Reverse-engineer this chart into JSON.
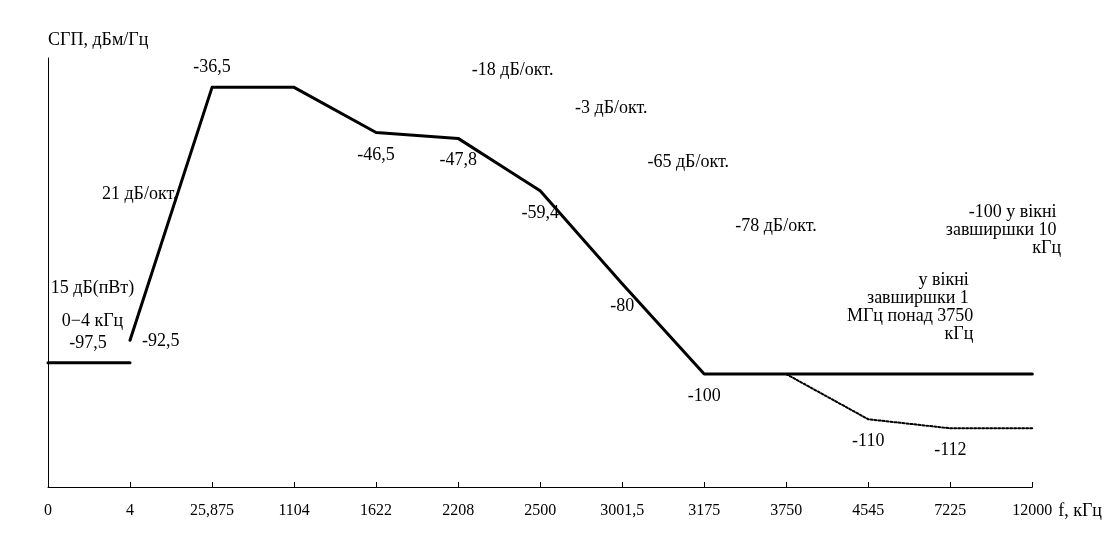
{
  "chart_data": {
    "type": "line",
    "xlabel": "f, кГц",
    "ylabel": "СГП, дБм/Гц",
    "categories": [
      "0",
      "4",
      "25,875",
      "1104",
      "1622",
      "2208",
      "2500",
      "3001,5",
      "3175",
      "3750",
      "4545",
      "7225",
      "12000"
    ],
    "ylim": [
      -125,
      -30
    ],
    "tick_labels": "x",
    "marker": "none",
    "series": [
      {
        "color": "#000000",
        "line_style": "solid",
        "values": [
          -97.5,
          -97.5,
          null,
          null,
          null,
          null,
          null,
          null,
          null,
          null,
          null,
          null,
          null
        ],
        "value_labels": [
          "-97,5",
          null,
          null,
          null,
          null,
          null,
          null,
          null,
          null,
          null,
          null,
          null,
          null
        ]
      },
      {
        "color": "#000000",
        "line_style": "solid",
        "values": [
          null,
          -92.5,
          -36.5,
          -36.5,
          -46.5,
          -47.8,
          -59.4,
          -80,
          -100,
          -100,
          -100,
          -100,
          -100
        ],
        "value_labels": [
          null,
          "-92,5",
          "-36,5",
          null,
          "-46,5",
          "-47,8",
          "-59,4",
          "-80",
          "-100",
          null,
          null,
          null,
          null
        ]
      },
      {
        "color": "#000000",
        "line_style": "dotted",
        "values": [
          null,
          null,
          null,
          null,
          null,
          null,
          null,
          null,
          null,
          -100,
          -110,
          -112,
          -112
        ],
        "value_labels": [
          null,
          null,
          null,
          null,
          null,
          null,
          null,
          null,
          null,
          null,
          "-110",
          "-112",
          null
        ]
      }
    ],
    "annotations": [
      "21 дБ/окт.",
      "-18 дБ/окт.",
      "-3 дБ/окт.",
      "-65 дБ/окт.",
      "-78 дБ/окт.",
      "15 дБ(пВт)",
      "0−4 кГц",
      "-100 у вікні завширшки 10 кГц",
      "у вікні завширшки 1 МГц понад 3750 кГц"
    ]
  }
}
